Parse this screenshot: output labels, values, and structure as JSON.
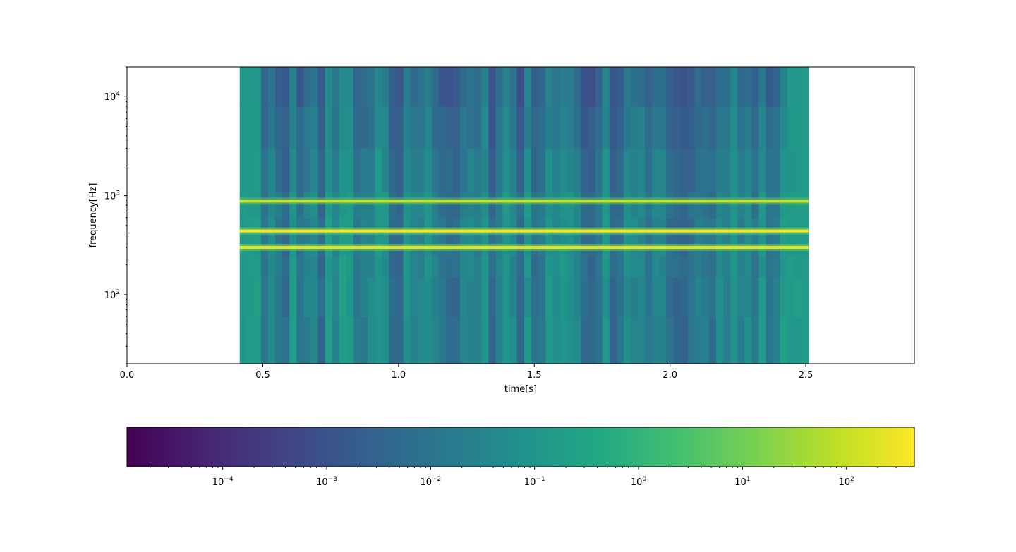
{
  "chart_data": [
    {
      "type": "heatmap",
      "xlabel": "time[s]",
      "ylabel": "frequency[Hz]",
      "x_scale": "linear",
      "y_scale": "log",
      "xlim": [
        0.0,
        2.9
      ],
      "ylim": [
        20,
        20000
      ],
      "x_ticks": [
        {
          "value": 0.0,
          "label": "0.0"
        },
        {
          "value": 0.5,
          "label": "0.5"
        },
        {
          "value": 1.0,
          "label": "1.0"
        },
        {
          "value": 1.5,
          "label": "1.5"
        },
        {
          "value": 2.0,
          "label": "2.0"
        },
        {
          "value": 2.5,
          "label": "2.5"
        }
      ],
      "y_ticks": [
        {
          "value": 100,
          "base": "10",
          "exp": "2"
        },
        {
          "value": 1000,
          "base": "10",
          "exp": "3"
        },
        {
          "value": 10000,
          "base": "10",
          "exp": "4"
        }
      ],
      "data_time_range": [
        0.415,
        2.51
      ],
      "onset_region": [
        0.415,
        0.49
      ],
      "offset_region": [
        2.44,
        2.51
      ],
      "tonal_lines": [
        {
          "frequency": 880,
          "power": 120
        },
        {
          "frequency": 440,
          "power": 400
        },
        {
          "frequency": 300,
          "power": 250
        }
      ],
      "band_power_range": [
        0.0003,
        1.5
      ],
      "colormap": "viridis",
      "grid": false
    },
    {
      "type": "colorbar",
      "orientation": "horizontal",
      "colormap": "viridis",
      "scale": "log",
      "range": [
        1.2e-05,
        450
      ],
      "ticks": [
        {
          "value": 0.0001,
          "base": "10",
          "exp": "−4"
        },
        {
          "value": 0.001,
          "base": "10",
          "exp": "−3"
        },
        {
          "value": 0.01,
          "base": "10",
          "exp": "−2"
        },
        {
          "value": 0.1,
          "base": "10",
          "exp": "−1"
        },
        {
          "value": 1,
          "base": "10",
          "exp": "0"
        },
        {
          "value": 10,
          "base": "10",
          "exp": "1"
        },
        {
          "value": 100,
          "base": "10",
          "exp": "2"
        }
      ]
    }
  ]
}
